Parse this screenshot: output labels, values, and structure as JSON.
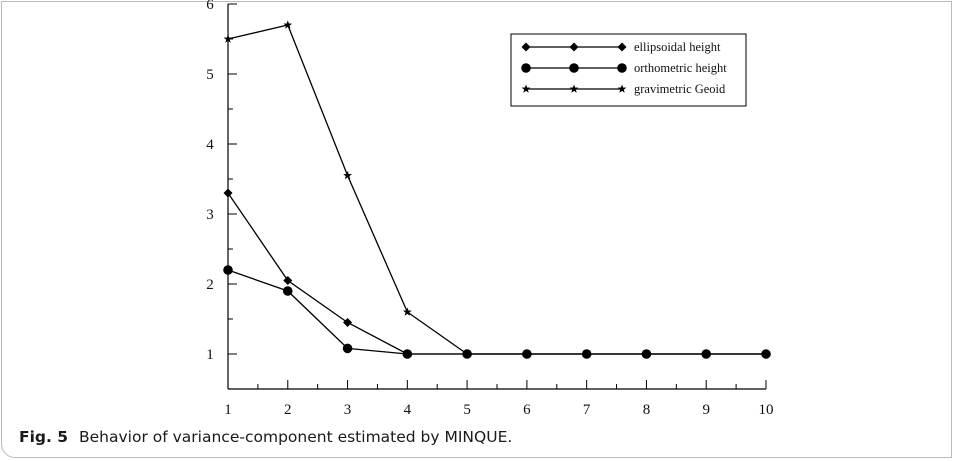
{
  "caption": {
    "label": "Fig. 5",
    "text": "Behavior of variance-component estimated by MINQUE."
  },
  "chart_data": {
    "type": "line",
    "title": "",
    "xlabel": "",
    "ylabel": "",
    "x": [
      1,
      2,
      3,
      4,
      5,
      6,
      7,
      8,
      9,
      10
    ],
    "xlim": [
      1,
      10
    ],
    "ylim": [
      0.5,
      6
    ],
    "x_ticks": [
      "1",
      "2",
      "3",
      "4",
      "5",
      "6",
      "7",
      "8",
      "9",
      "10"
    ],
    "y_ticks": [
      "1",
      "2",
      "3",
      "4",
      "5",
      "6"
    ],
    "grid": false,
    "legend_position": "top-right",
    "series": [
      {
        "name": "ellipsoidal height",
        "marker": "diamond",
        "color": "#000000",
        "values": [
          3.3,
          2.05,
          1.45,
          1.0,
          1.0,
          1.0,
          1.0,
          1.0,
          1.0,
          1.0
        ]
      },
      {
        "name": "orthometric height",
        "marker": "circle",
        "color": "#000000",
        "values": [
          2.2,
          1.9,
          1.08,
          1.0,
          1.0,
          1.0,
          1.0,
          1.0,
          1.0,
          1.0
        ]
      },
      {
        "name": "gravimetric Geoid",
        "marker": "star",
        "color": "#000000",
        "values": [
          5.5,
          5.7,
          3.55,
          1.6,
          1.0,
          1.0,
          1.0,
          1.0,
          1.0,
          1.0
        ]
      }
    ]
  }
}
